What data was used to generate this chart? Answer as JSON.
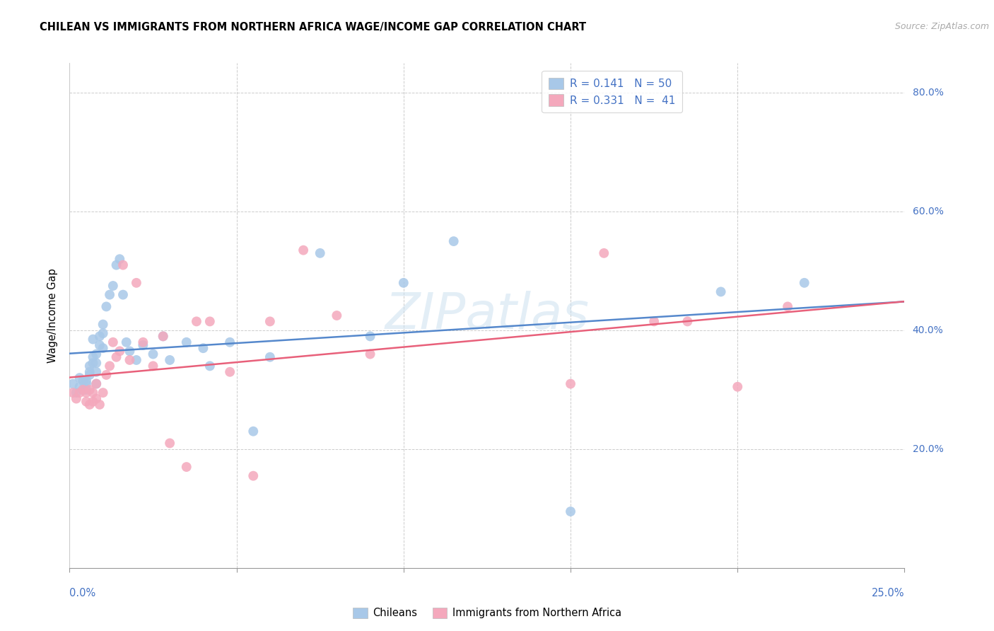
{
  "title": "CHILEAN VS IMMIGRANTS FROM NORTHERN AFRICA WAGE/INCOME GAP CORRELATION CHART",
  "source": "Source: ZipAtlas.com",
  "ylabel": "Wage/Income Gap",
  "watermark": "ZIPatlas",
  "chilean_color": "#a8c8e8",
  "immigrant_color": "#f4a8bc",
  "line_chilean": "#5588cc",
  "line_immigrant": "#e8607a",
  "xlim": [
    0.0,
    0.25
  ],
  "ylim": [
    0.0,
    0.85
  ],
  "right_ytick_vals": [
    0.2,
    0.4,
    0.6,
    0.8
  ],
  "right_ytick_labels": [
    "20.0%",
    "40.0%",
    "60.0%",
    "80.0%"
  ],
  "chilean_x": [
    0.001,
    0.002,
    0.003,
    0.003,
    0.004,
    0.004,
    0.005,
    0.005,
    0.005,
    0.006,
    0.006,
    0.006,
    0.007,
    0.007,
    0.007,
    0.008,
    0.008,
    0.008,
    0.008,
    0.009,
    0.009,
    0.01,
    0.01,
    0.01,
    0.011,
    0.012,
    0.013,
    0.014,
    0.015,
    0.016,
    0.017,
    0.018,
    0.02,
    0.022,
    0.025,
    0.028,
    0.03,
    0.035,
    0.04,
    0.042,
    0.048,
    0.055,
    0.06,
    0.075,
    0.09,
    0.1,
    0.115,
    0.15,
    0.195,
    0.22
  ],
  "chilean_y": [
    0.31,
    0.295,
    0.305,
    0.32,
    0.3,
    0.315,
    0.315,
    0.3,
    0.31,
    0.34,
    0.33,
    0.325,
    0.385,
    0.355,
    0.345,
    0.36,
    0.345,
    0.33,
    0.31,
    0.39,
    0.375,
    0.41,
    0.395,
    0.37,
    0.44,
    0.46,
    0.475,
    0.51,
    0.52,
    0.46,
    0.38,
    0.365,
    0.35,
    0.375,
    0.36,
    0.39,
    0.35,
    0.38,
    0.37,
    0.34,
    0.38,
    0.23,
    0.355,
    0.53,
    0.39,
    0.48,
    0.55,
    0.095,
    0.465,
    0.48
  ],
  "immigrant_x": [
    0.001,
    0.002,
    0.003,
    0.004,
    0.005,
    0.005,
    0.006,
    0.006,
    0.007,
    0.007,
    0.008,
    0.008,
    0.009,
    0.01,
    0.011,
    0.012,
    0.013,
    0.014,
    0.015,
    0.016,
    0.018,
    0.02,
    0.022,
    0.025,
    0.028,
    0.03,
    0.035,
    0.038,
    0.042,
    0.048,
    0.055,
    0.06,
    0.07,
    0.08,
    0.09,
    0.15,
    0.16,
    0.175,
    0.185,
    0.2,
    0.215
  ],
  "immigrant_y": [
    0.295,
    0.285,
    0.295,
    0.3,
    0.295,
    0.28,
    0.3,
    0.275,
    0.295,
    0.28,
    0.31,
    0.285,
    0.275,
    0.295,
    0.325,
    0.34,
    0.38,
    0.355,
    0.365,
    0.51,
    0.35,
    0.48,
    0.38,
    0.34,
    0.39,
    0.21,
    0.17,
    0.415,
    0.415,
    0.33,
    0.155,
    0.415,
    0.535,
    0.425,
    0.36,
    0.31,
    0.53,
    0.415,
    0.415,
    0.305,
    0.44
  ],
  "legend1_R1": "R = 0.141",
  "legend1_N1": "N = 50",
  "legend1_R2": "R = 0.331",
  "legend1_N2": "N =  41",
  "legend_bottom_1": "Chileans",
  "legend_bottom_2": "Immigrants from Northern Africa"
}
